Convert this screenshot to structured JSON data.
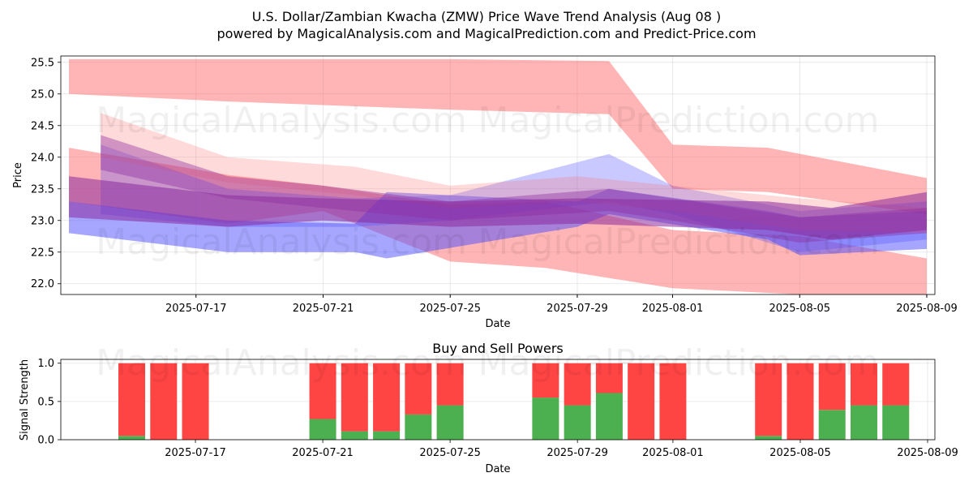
{
  "title_line1": "U.S. Dollar/Zambian Kwacha (ZMW) Price Wave Trend Analysis (Aug 08 )",
  "title_line2": "powered by MagicalAnalysis.com and MagicalPrediction.com and Predict-Price.com",
  "watermarks": [
    "MagicalAnalysis.com",
    "MagicalPrediction.com"
  ],
  "colors": {
    "buy": "#4caf50",
    "sell": "#ff4444",
    "red_band": "#ff6b6b",
    "blue_band": "#4d4dff",
    "purple_band": "#8b2a9e"
  },
  "chart_data": [
    {
      "type": "area",
      "title": "",
      "xlabel": "Date",
      "ylabel": "Price",
      "x_ticks": [
        "2025-07-17",
        "2025-07-21",
        "2025-07-25",
        "2025-07-29",
        "2025-08-01",
        "2025-08-05",
        "2025-08-09"
      ],
      "y_ticks": [
        "22.0",
        "22.5",
        "23.0",
        "23.5",
        "24.0",
        "24.5",
        "25.0",
        "25.5"
      ],
      "xlim": [
        "2025-07-13",
        "2025-08-09"
      ],
      "ylim": [
        21.83,
        25.6
      ],
      "grid": true,
      "series": [
        {
          "color": "red",
          "opacity": 0.5,
          "points": [
            [
              "2025-07-13",
              25.0,
              25.55
            ],
            [
              "2025-07-18",
              24.88,
              25.55
            ],
            [
              "2025-07-25",
              24.75,
              25.55
            ],
            [
              "2025-07-30",
              24.68,
              25.52
            ],
            [
              "2025-08-01",
              23.5,
              24.2
            ],
            [
              "2025-08-04",
              23.45,
              24.15
            ],
            [
              "2025-08-09",
              23.1,
              23.67
            ]
          ]
        },
        {
          "color": "red",
          "opacity": 0.5,
          "points": [
            [
              "2025-07-13",
              23.3,
              24.15
            ],
            [
              "2025-07-18",
              22.95,
              23.72
            ],
            [
              "2025-07-21",
              23.15,
              23.55
            ],
            [
              "2025-07-25",
              22.35,
              23.25
            ],
            [
              "2025-07-28",
              22.25,
              23.3
            ],
            [
              "2025-08-01",
              21.93,
              22.85
            ],
            [
              "2025-08-05",
              21.83,
              22.75
            ],
            [
              "2025-08-09",
              21.83,
              22.4
            ]
          ]
        },
        {
          "color": "blue",
          "opacity": 0.5,
          "points": [
            [
              "2025-07-13",
              22.8,
              23.3
            ],
            [
              "2025-07-18",
              22.5,
              23.0
            ],
            [
              "2025-07-22",
              22.5,
              22.95
            ],
            [
              "2025-07-23",
              22.4,
              23.45
            ],
            [
              "2025-07-29",
              22.9,
              23.3
            ],
            [
              "2025-07-30",
              23.1,
              23.5
            ],
            [
              "2025-08-04",
              22.7,
              23.15
            ],
            [
              "2025-08-05",
              22.45,
              23.05
            ],
            [
              "2025-08-09",
              22.55,
              23.15
            ]
          ]
        },
        {
          "color": "blue",
          "opacity": 0.3,
          "points": [
            [
              "2025-07-14",
              23.1,
              24.2
            ],
            [
              "2025-07-18",
              22.9,
              23.5
            ],
            [
              "2025-07-22",
              22.9,
              23.35
            ],
            [
              "2025-07-25",
              23.0,
              23.4
            ],
            [
              "2025-07-30",
              23.3,
              24.05
            ],
            [
              "2025-08-01",
              23.1,
              23.55
            ],
            [
              "2025-08-05",
              22.5,
              23.15
            ],
            [
              "2025-08-09",
              22.7,
              23.3
            ]
          ]
        },
        {
          "color": "red",
          "opacity": 0.25,
          "points": [
            [
              "2025-07-14",
              24.0,
              24.7
            ],
            [
              "2025-07-18",
              23.6,
              24.0
            ],
            [
              "2025-07-22",
              23.4,
              23.85
            ],
            [
              "2025-07-25",
              23.2,
              23.55
            ],
            [
              "2025-07-29",
              23.3,
              23.7
            ],
            [
              "2025-08-01",
              23.15,
              23.55
            ],
            [
              "2025-08-05",
              22.85,
              23.35
            ],
            [
              "2025-08-09",
              22.8,
              23.2
            ]
          ]
        },
        {
          "color": "purple",
          "opacity": 0.55,
          "points": [
            [
              "2025-07-13",
              23.05,
              23.7
            ],
            [
              "2025-07-18",
              22.9,
              23.4
            ],
            [
              "2025-07-21",
              23.0,
              23.35
            ],
            [
              "2025-07-25",
              22.9,
              23.3
            ],
            [
              "2025-07-29",
              22.95,
              23.35
            ],
            [
              "2025-08-04",
              22.85,
              23.3
            ],
            [
              "2025-08-06",
              22.7,
              23.2
            ],
            [
              "2025-08-09",
              22.85,
              23.45
            ]
          ]
        },
        {
          "color": "purple",
          "opacity": 0.4,
          "points": [
            [
              "2025-07-14",
              23.8,
              24.35
            ],
            [
              "2025-07-18",
              23.35,
              23.7
            ],
            [
              "2025-07-21",
              23.2,
              23.55
            ],
            [
              "2025-07-25",
              23.0,
              23.3
            ],
            [
              "2025-07-30",
              23.15,
              23.5
            ],
            [
              "2025-08-01",
              23.0,
              23.35
            ],
            [
              "2025-08-05",
              22.65,
              23.05
            ],
            [
              "2025-08-09",
              22.8,
              23.2
            ]
          ]
        }
      ]
    },
    {
      "type": "bar",
      "title": "Buy and Sell Powers",
      "xlabel": "Date",
      "ylabel": "Signal Strength",
      "x_ticks": [
        "2025-07-17",
        "2025-07-21",
        "2025-07-25",
        "2025-07-29",
        "2025-08-01",
        "2025-08-05",
        "2025-08-09"
      ],
      "y_ticks": [
        "0.0",
        "0.5",
        "1.0"
      ],
      "ylim": [
        0,
        1.05
      ],
      "grid": true,
      "categories": [
        "2025-07-15",
        "2025-07-16",
        "2025-07-17",
        "2025-07-21",
        "2025-07-22",
        "2025-07-23",
        "2025-07-24",
        "2025-07-25",
        "2025-07-28",
        "2025-07-29",
        "2025-07-30",
        "2025-07-31",
        "2025-08-01",
        "2025-08-04",
        "2025-08-05",
        "2025-08-06",
        "2025-08-07",
        "2025-08-08"
      ],
      "series": [
        {
          "name": "Buy",
          "values": [
            0.05,
            0.0,
            0.0,
            0.27,
            0.11,
            0.11,
            0.33,
            0.45,
            0.55,
            0.45,
            0.61,
            0.0,
            0.0,
            0.05,
            0.0,
            0.39,
            0.45,
            0.45
          ]
        },
        {
          "name": "Sell",
          "values": [
            0.95,
            1.0,
            1.0,
            0.73,
            0.89,
            0.89,
            0.67,
            0.55,
            0.45,
            0.55,
            0.39,
            1.0,
            1.0,
            0.95,
            1.0,
            0.61,
            0.55,
            0.55
          ]
        }
      ]
    }
  ]
}
